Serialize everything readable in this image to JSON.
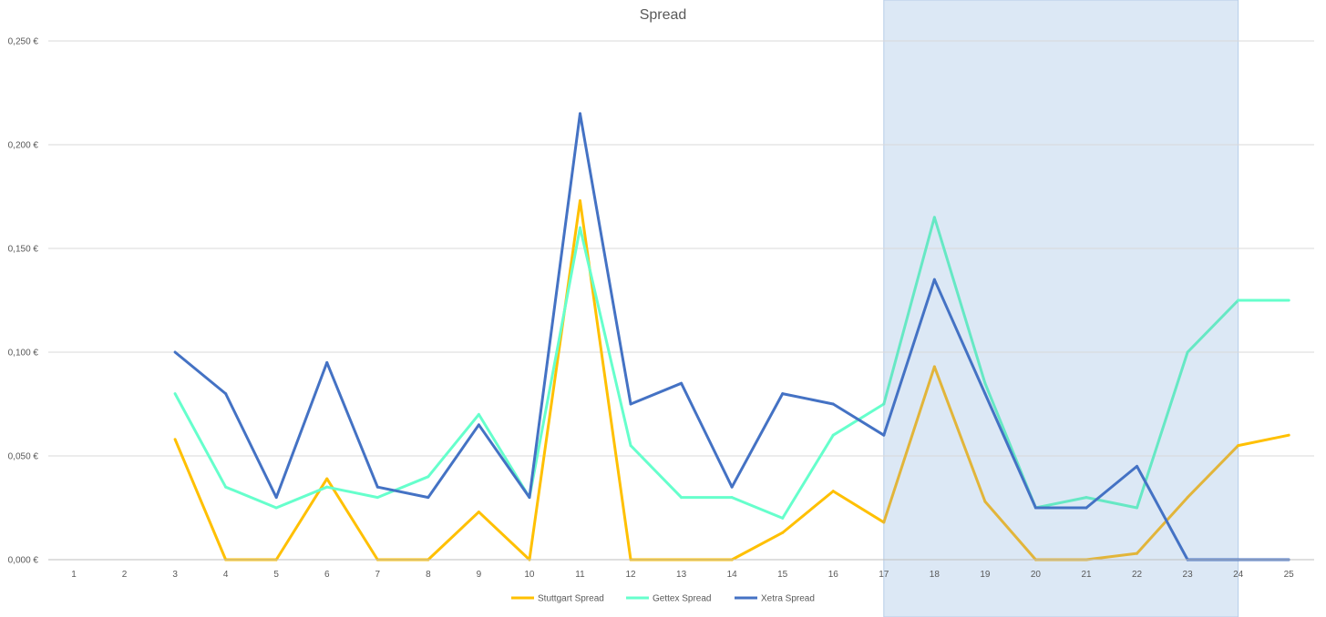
{
  "chart_data": {
    "type": "line",
    "title": "Spread",
    "xlabel": "",
    "ylabel": "",
    "x": [
      1,
      2,
      3,
      4,
      5,
      6,
      7,
      8,
      9,
      10,
      11,
      12,
      13,
      14,
      15,
      16,
      17,
      18,
      19,
      20,
      21,
      22,
      23,
      24,
      25
    ],
    "x_tick_labels": [
      "1",
      "2",
      "3",
      "4",
      "5",
      "6",
      "7",
      "8",
      "9",
      "10",
      "11",
      "12",
      "13",
      "14",
      "15",
      "16",
      "17",
      "18",
      "19",
      "20",
      "21",
      "22",
      "23",
      "24",
      "25"
    ],
    "ylim": [
      0,
      0.25
    ],
    "y_ticks": [
      0,
      0.05,
      0.1,
      0.15,
      0.2,
      0.25
    ],
    "y_tick_labels": [
      "0,000 €",
      "0,050 €",
      "0,100 €",
      "0,150 €",
      "0,200 €",
      "0,250 €"
    ],
    "grid": true,
    "legend_position": "bottom",
    "highlight_region": {
      "x_from": 17,
      "x_to": 24,
      "color": "#dce8f5"
    },
    "series": [
      {
        "name": "Stuttgart Spread",
        "color": "#ffc000",
        "highlight_color": "#e2b53a",
        "values": [
          null,
          null,
          0.058,
          0,
          0,
          0.039,
          0,
          0,
          0.023,
          0,
          0.173,
          0,
          0,
          0,
          0.013,
          0.033,
          0.018,
          0.093,
          0.028,
          0,
          0,
          0.003,
          0.03,
          0.055,
          0.06
        ]
      },
      {
        "name": "Gettex Spread",
        "color": "#66ffcc",
        "highlight_color": "#66e8c4",
        "values": [
          null,
          null,
          0.08,
          0.035,
          0.025,
          0.035,
          0.03,
          0.04,
          0.07,
          0.03,
          0.16,
          0.055,
          0.03,
          0.03,
          0.02,
          0.06,
          0.075,
          0.165,
          0.085,
          0.025,
          0.03,
          0.025,
          0.1,
          0.125,
          0.125
        ]
      },
      {
        "name": "Xetra Spread",
        "color": "#4472c4",
        "highlight_color": "#4472c4",
        "values": [
          null,
          null,
          0.1,
          0.08,
          0.03,
          0.095,
          0.035,
          0.03,
          0.065,
          0.03,
          0.215,
          0.075,
          0.085,
          0.035,
          0.08,
          0.075,
          0.06,
          0.135,
          0.08,
          0.025,
          0.025,
          0.045,
          0,
          0,
          0
        ]
      }
    ]
  }
}
